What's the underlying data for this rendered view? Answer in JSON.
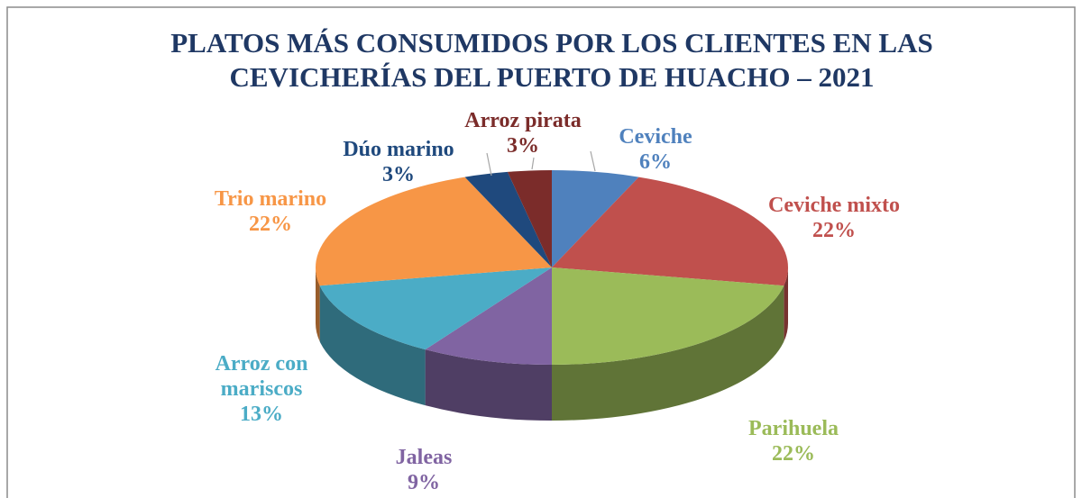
{
  "chart_data": {
    "type": "pie",
    "title": [
      "PLATOS MÁS CONSUMIDOS POR LOS CLIENTES EN LAS",
      "CEVICHERÍAS DEL PUERTO DE HUACHO – 2021"
    ],
    "categories": [
      "Ceviche",
      "Ceviche mixto",
      "Parihuela",
      "Jaleas",
      "Arroz con mariscos",
      "Trio marino",
      "Dúo marino",
      "Arroz pirata"
    ],
    "values": [
      6,
      22,
      22,
      9,
      13,
      22,
      3,
      3
    ],
    "value_labels": [
      "6%",
      "22%",
      "22%",
      "9%",
      "13%",
      "22%",
      "3%",
      "3%"
    ],
    "colors": [
      "#4f81bd",
      "#c0504d",
      "#9bbb59",
      "#8064a2",
      "#4bacc6",
      "#f79646",
      "#1f497d",
      "#7b2c2a"
    ]
  }
}
